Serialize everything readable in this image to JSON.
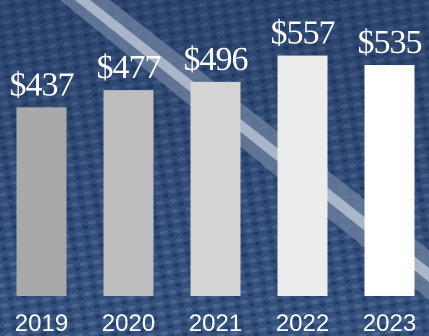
{
  "chart_data": {
    "type": "bar",
    "categories": [
      "2019",
      "2020",
      "2021",
      "2022",
      "2023"
    ],
    "values": [
      437,
      477,
      496,
      557,
      535
    ],
    "value_labels": [
      "$437",
      "$477",
      "$496",
      "$557",
      "$535"
    ],
    "colors": [
      "#a9a9a9",
      "#bdbdbd",
      "#d4d4d4",
      "#ececec",
      "#ffffff"
    ],
    "ylim": [
      0,
      600
    ]
  }
}
